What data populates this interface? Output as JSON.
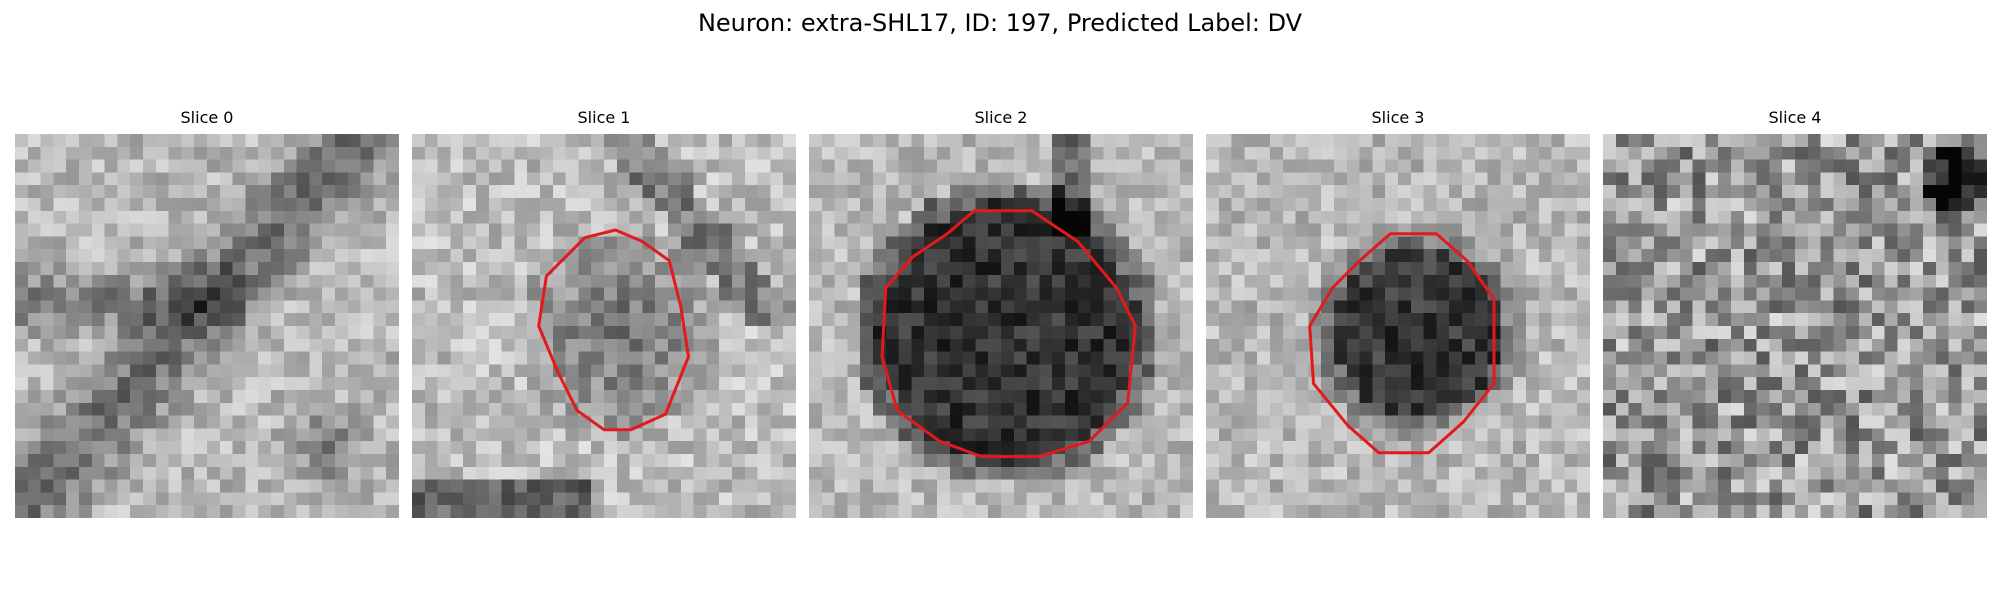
{
  "title": "Neuron: extra-SHL17, ID: 197, Predicted Label: DV",
  "contour_color": "#e31a1c",
  "grid_size": 30,
  "slices": [
    {
      "label": "Slice 0",
      "has_contour": false,
      "texture": "dark-diagonal-band"
    },
    {
      "label": "Slice 1",
      "has_contour": true,
      "texture": "mid-gray-blob"
    },
    {
      "label": "Slice 2",
      "has_contour": true,
      "texture": "large-dark-blob"
    },
    {
      "label": "Slice 3",
      "has_contour": true,
      "texture": "dark-blob"
    },
    {
      "label": "Slice 4",
      "has_contour": false,
      "texture": "speckled-noise"
    }
  ]
}
